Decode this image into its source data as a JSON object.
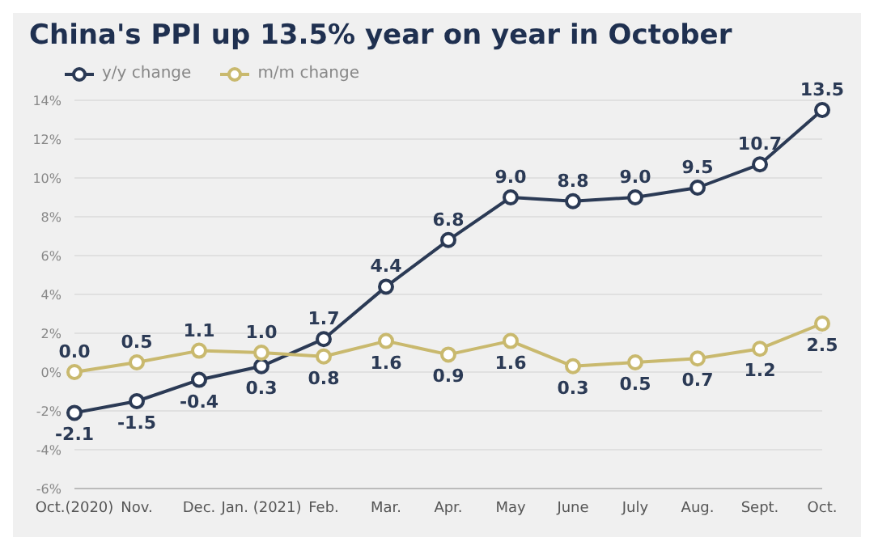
{
  "chart_data": {
    "type": "line",
    "title": "China's PPI up 13.5% year on year in October",
    "categories": [
      "Oct.(2020)",
      "Nov.",
      "Dec.",
      "Jan. (2021)",
      "Feb.",
      "Mar.",
      "Apr.",
      "May",
      "June",
      "July",
      "Aug.",
      "Sept.",
      "Oct."
    ],
    "series": [
      {
        "name": "y/y change",
        "color": "#2b3a55",
        "values": [
          -2.1,
          -1.5,
          -0.4,
          0.3,
          1.7,
          4.4,
          6.8,
          9.0,
          8.8,
          9.0,
          9.5,
          10.7,
          13.5
        ],
        "value_labels": [
          "-2.1",
          "-1.5",
          "-0.4",
          "0.3",
          "1.7",
          "4.4",
          "6.8",
          "9.0",
          "8.8",
          "9.0",
          "9.5",
          "10.7",
          "13.5"
        ]
      },
      {
        "name": "m/m change",
        "color": "#c9b96e",
        "values": [
          0.0,
          0.5,
          1.1,
          1.0,
          0.8,
          1.6,
          0.9,
          1.6,
          0.3,
          0.5,
          0.7,
          1.2,
          2.5
        ],
        "value_labels": [
          "0.0",
          "0.5",
          "1.1",
          "1.0",
          "0.8",
          "1.6",
          "0.9",
          "1.6",
          "0.3",
          "0.5",
          "0.7",
          "1.2",
          "2.5"
        ]
      }
    ],
    "ylim": [
      -6,
      14
    ],
    "yticks": [
      {
        "value": -6,
        "label": "-6%"
      },
      {
        "value": -4,
        "label": "-4%"
      },
      {
        "value": -2,
        "label": "-2%"
      },
      {
        "value": 0,
        "label": "0%"
      },
      {
        "value": 2,
        "label": "2%"
      },
      {
        "value": 4,
        "label": "4%"
      },
      {
        "value": 6,
        "label": "6%"
      },
      {
        "value": 8,
        "label": "8%"
      },
      {
        "value": 10,
        "label": "10%"
      },
      {
        "value": 12,
        "label": "12%"
      },
      {
        "value": 14,
        "label": "14%"
      }
    ],
    "grid": "y",
    "legend": "top left",
    "marker": "circle",
    "line_style": "solid"
  }
}
